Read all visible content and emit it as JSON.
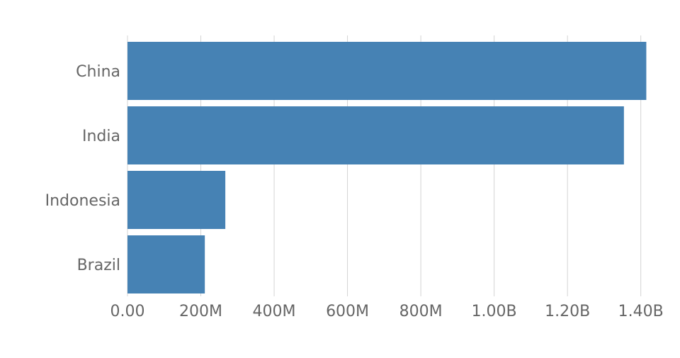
{
  "chart_data": {
    "type": "bar",
    "orientation": "horizontal",
    "categories": [
      "China",
      "India",
      "Indonesia",
      "Brazil"
    ],
    "values": [
      1415000000,
      1354000000,
      266800000,
      210900000
    ],
    "xlim": [
      0,
      1420000000
    ],
    "ticks": [
      0,
      200000000,
      400000000,
      600000000,
      800000000,
      1000000000,
      1200000000,
      1400000000
    ],
    "tick_labels": [
      "0.00",
      "200M",
      "400M",
      "600M",
      "800M",
      "1.00B",
      "1.20B",
      "1.40B"
    ],
    "grid": true,
    "legend": false,
    "title": "",
    "xlabel": "",
    "ylabel": "",
    "colors": {
      "bar": "#4682b4",
      "grid": "#d4d4d4",
      "text": "#666666"
    }
  }
}
